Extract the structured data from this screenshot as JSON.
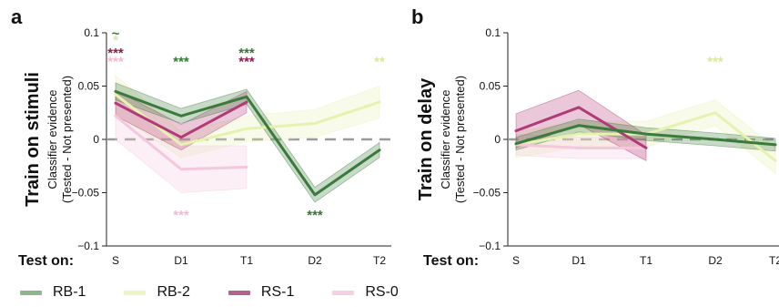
{
  "chart_data": [
    {
      "type": "line",
      "panel_label": "a",
      "row_title": "Train on stimuli",
      "ylabel": [
        "Classifier evidence",
        "(Tested - Not presented)"
      ],
      "xlabel": "Test on:",
      "categories": [
        "S",
        "D1",
        "T1",
        "D2",
        "T2"
      ],
      "ylim": [
        -0.1,
        0.1
      ],
      "yticks": [
        -0.1,
        -0.05,
        0,
        0.05,
        0.1
      ],
      "ytick_labels": [
        "−0.1",
        "−0.05",
        "0",
        "0.05",
        "0.1"
      ],
      "series": [
        {
          "name": "RB-2",
          "color": "#e6f2b0",
          "values": [
            0.042,
            -0.005,
            0.01,
            0.015,
            0.035
          ],
          "band": [
            0.018,
            0.012,
            0.012,
            0.013,
            0.015
          ]
        },
        {
          "name": "RS-0",
          "color": "#f5c6dc",
          "values": [
            0.022,
            -0.028,
            -0.026,
            null,
            null
          ],
          "band": [
            0.022,
            0.022,
            0.02,
            null,
            null
          ]
        },
        {
          "name": "RS-1",
          "color": "#b23a78",
          "values": [
            0.034,
            0.002,
            0.035,
            null,
            null
          ],
          "band": [
            0.012,
            0.012,
            0.01,
            null,
            null
          ]
        },
        {
          "name": "RB-1",
          "color": "#3a7a3a",
          "values": [
            0.045,
            0.022,
            0.04,
            -0.052,
            -0.01
          ],
          "band": [
            0.008,
            0.007,
            0.007,
            0.007,
            0.007
          ]
        }
      ],
      "annotations": [
        {
          "text": "~",
          "x": "S",
          "y": 0.1,
          "color": "#3a7a3a"
        },
        {
          "text": "*",
          "x": "S",
          "y": 0.094,
          "color": "#d9e79b"
        },
        {
          "text": "***",
          "x": "S",
          "y": 0.082,
          "color": "#8e1b4e"
        },
        {
          "text": "***",
          "x": "S",
          "y": 0.074,
          "color": "#f5b8d4"
        },
        {
          "text": "***",
          "x": "D1",
          "y": 0.074,
          "color": "#2f7a2f"
        },
        {
          "text": "***",
          "x": "T1",
          "y": 0.082,
          "color": "#2f7a2f"
        },
        {
          "text": "***",
          "x": "T1",
          "y": 0.074,
          "color": "#8e1b4e"
        },
        {
          "text": "**",
          "x": "T2",
          "y": 0.074,
          "color": "#dbe89c"
        },
        {
          "text": "***",
          "x": "D1",
          "y": -0.07,
          "color": "#f5b8d4"
        },
        {
          "text": "***",
          "x": "D2",
          "y": -0.07,
          "color": "#2f7a2f"
        }
      ]
    },
    {
      "type": "line",
      "panel_label": "b",
      "row_title": "Train on delay",
      "ylabel": [
        "Classifier evidence",
        "(Tested - Not presented)"
      ],
      "xlabel": "Test on:",
      "categories": [
        "S",
        "D1",
        "T1",
        "D2",
        "T2"
      ],
      "ylim": [
        -0.1,
        0.1
      ],
      "yticks": [
        -0.1,
        -0.05,
        0,
        0.05,
        0.1
      ],
      "ytick_labels": [
        "−0.1",
        "−0.05",
        "0",
        "0.05",
        "0.1"
      ],
      "series": [
        {
          "name": "RB-2",
          "color": "#e6f2b0",
          "values": [
            -0.005,
            0.005,
            0.005,
            0.025,
            -0.02
          ],
          "band": [
            0.012,
            0.012,
            0.012,
            0.012,
            0.012
          ]
        },
        {
          "name": "RS-0",
          "color": "#f5c6dc",
          "values": [
            -0.005,
            -0.008,
            -0.008,
            null,
            null
          ],
          "band": [
            0.01,
            0.01,
            0.01,
            null,
            null
          ]
        },
        {
          "name": "RS-1",
          "color": "#b23a78",
          "values": [
            0.008,
            0.03,
            -0.008,
            null,
            null
          ],
          "band": [
            0.016,
            0.016,
            0.012,
            null,
            null
          ]
        },
        {
          "name": "RB-1",
          "color": "#3a7a3a",
          "values": [
            -0.004,
            0.013,
            0.005,
            0.0,
            -0.005
          ],
          "band": [
            0.006,
            0.006,
            0.006,
            0.006,
            0.006
          ]
        }
      ],
      "annotations": [
        {
          "text": "***",
          "x": "D2",
          "y": 0.074,
          "color": "#dbe89c"
        }
      ]
    }
  ],
  "legend": [
    {
      "label": "RB-1",
      "color": "#8fb78f"
    },
    {
      "label": "RB-2",
      "color": "#eef5c4"
    },
    {
      "label": "RS-1",
      "color": "#b5628f"
    },
    {
      "label": "RS-0",
      "color": "#f8cfe2"
    }
  ]
}
